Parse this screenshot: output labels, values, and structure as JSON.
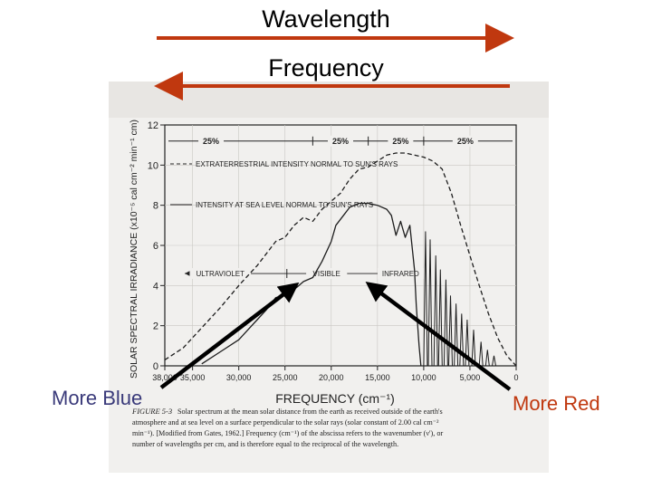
{
  "slide": {
    "wavelength_label": "Wavelength",
    "frequency_label": "Frequency",
    "more_blue": "More Blue",
    "more_red": "More Red",
    "arrow_color": "#c0380f",
    "more_blue_color": "#3a3a7a",
    "more_red_color": "#c0380f"
  },
  "figure": {
    "caption_title": "FIGURE 5-3",
    "caption_lines": [
      "Solar spectrum at the mean solar distance from the earth as received outside of the earth's",
      "atmosphere and at sea level on a surface perpendicular to the solar rays (solar constant of 2.00 cal cm⁻²",
      "min⁻¹). [Modified from Gates, 1962.] Frequency (cm⁻¹) of the abscissa refers to the wavenumber (ν'), or",
      "number of wavelengths per cm, and is therefore equal to the reciprocal of the wavelength."
    ]
  },
  "chart_data": {
    "type": "line",
    "xlabel": "FREQUENCY (cm⁻¹)",
    "ylabel": "SOLAR SPECTRAL IRRADIANCE (x10⁻⁵ cal cm⁻² min⁻¹ cm)",
    "xlim": [
      38000,
      0
    ],
    "ylim": [
      0,
      12
    ],
    "x_ticks": [
      {
        "value": 38000,
        "label": "38,000"
      },
      {
        "value": 35000,
        "label": "35,000"
      },
      {
        "value": 30000,
        "label": "30,000"
      },
      {
        "value": 25000,
        "label": "25,000"
      },
      {
        "value": 20000,
        "label": "20,000"
      },
      {
        "value": 15000,
        "label": "15,000"
      },
      {
        "value": 10000,
        "label": "10,000"
      },
      {
        "value": 5000,
        "label": "5,000"
      },
      {
        "value": 0,
        "label": "0"
      }
    ],
    "y_ticks": [
      0,
      2,
      4,
      6,
      8,
      10,
      12
    ],
    "percent_markers": {
      "y": 11.2,
      "labels": [
        "25%",
        "25%",
        "25%",
        "25%"
      ],
      "x": [
        33000,
        19000,
        12500,
        5500
      ],
      "dividers": [
        38000,
        22000,
        16000,
        10000,
        0
      ]
    },
    "regions": {
      "y": 4.6,
      "labels": [
        "ULTRAVIOLET",
        "VISIBLE",
        "INFRARED"
      ],
      "label_x": [
        32000,
        20500,
        12500
      ],
      "dividers": [
        24800,
        14500
      ]
    },
    "legend_entries": [
      "EXTRATERRESTRIAL INTENSITY NORMAL TO SUN'S RAYS",
      "INTENSITY AT SEA LEVEL NORMAL TO SUN'S RAYS"
    ],
    "series": [
      {
        "name": "EXTRATERRESTRIAL INTENSITY NORMAL TO SUN'S RAYS",
        "style": "dashed",
        "x": [
          38000,
          36000,
          34000,
          32000,
          30000,
          28000,
          26000,
          25000,
          24000,
          23000,
          22000,
          21000,
          20000,
          19000,
          18000,
          17000,
          16000,
          15000,
          14000,
          13000,
          12000,
          11000,
          10000,
          9000,
          8000,
          7000,
          6000,
          5000,
          4000,
          3000,
          2000,
          1000,
          0
        ],
        "y": [
          0.3,
          0.9,
          1.9,
          2.9,
          4.0,
          5.0,
          6.2,
          6.4,
          7.0,
          7.4,
          7.2,
          7.8,
          8.2,
          8.6,
          9.3,
          9.8,
          9.9,
          10.2,
          10.5,
          10.6,
          10.6,
          10.5,
          10.4,
          10.2,
          9.8,
          8.6,
          7.0,
          5.5,
          4.0,
          2.6,
          1.4,
          0.5,
          0
        ]
      },
      {
        "name": "INTENSITY AT SEA LEVEL NORMAL TO SUN'S RAYS",
        "style": "solid",
        "x": [
          34000,
          32000,
          30000,
          29000,
          28000,
          27000,
          26000,
          25000,
          24000,
          23000,
          22000,
          21000,
          20000,
          19500,
          19000,
          18000,
          17000,
          16000,
          15000,
          14000,
          13500,
          13000,
          12500,
          12000,
          11500,
          11000,
          10800,
          10500,
          10300
        ],
        "y": [
          0.1,
          0.7,
          1.3,
          1.8,
          2.3,
          2.8,
          3.4,
          3.5,
          3.8,
          4.2,
          4.4,
          5.2,
          6.2,
          7.0,
          7.3,
          7.9,
          8.1,
          8.1,
          8.0,
          7.8,
          7.5,
          6.5,
          7.2,
          6.4,
          7.0,
          4.8,
          3.0,
          1.0,
          0
        ]
      }
    ]
  }
}
